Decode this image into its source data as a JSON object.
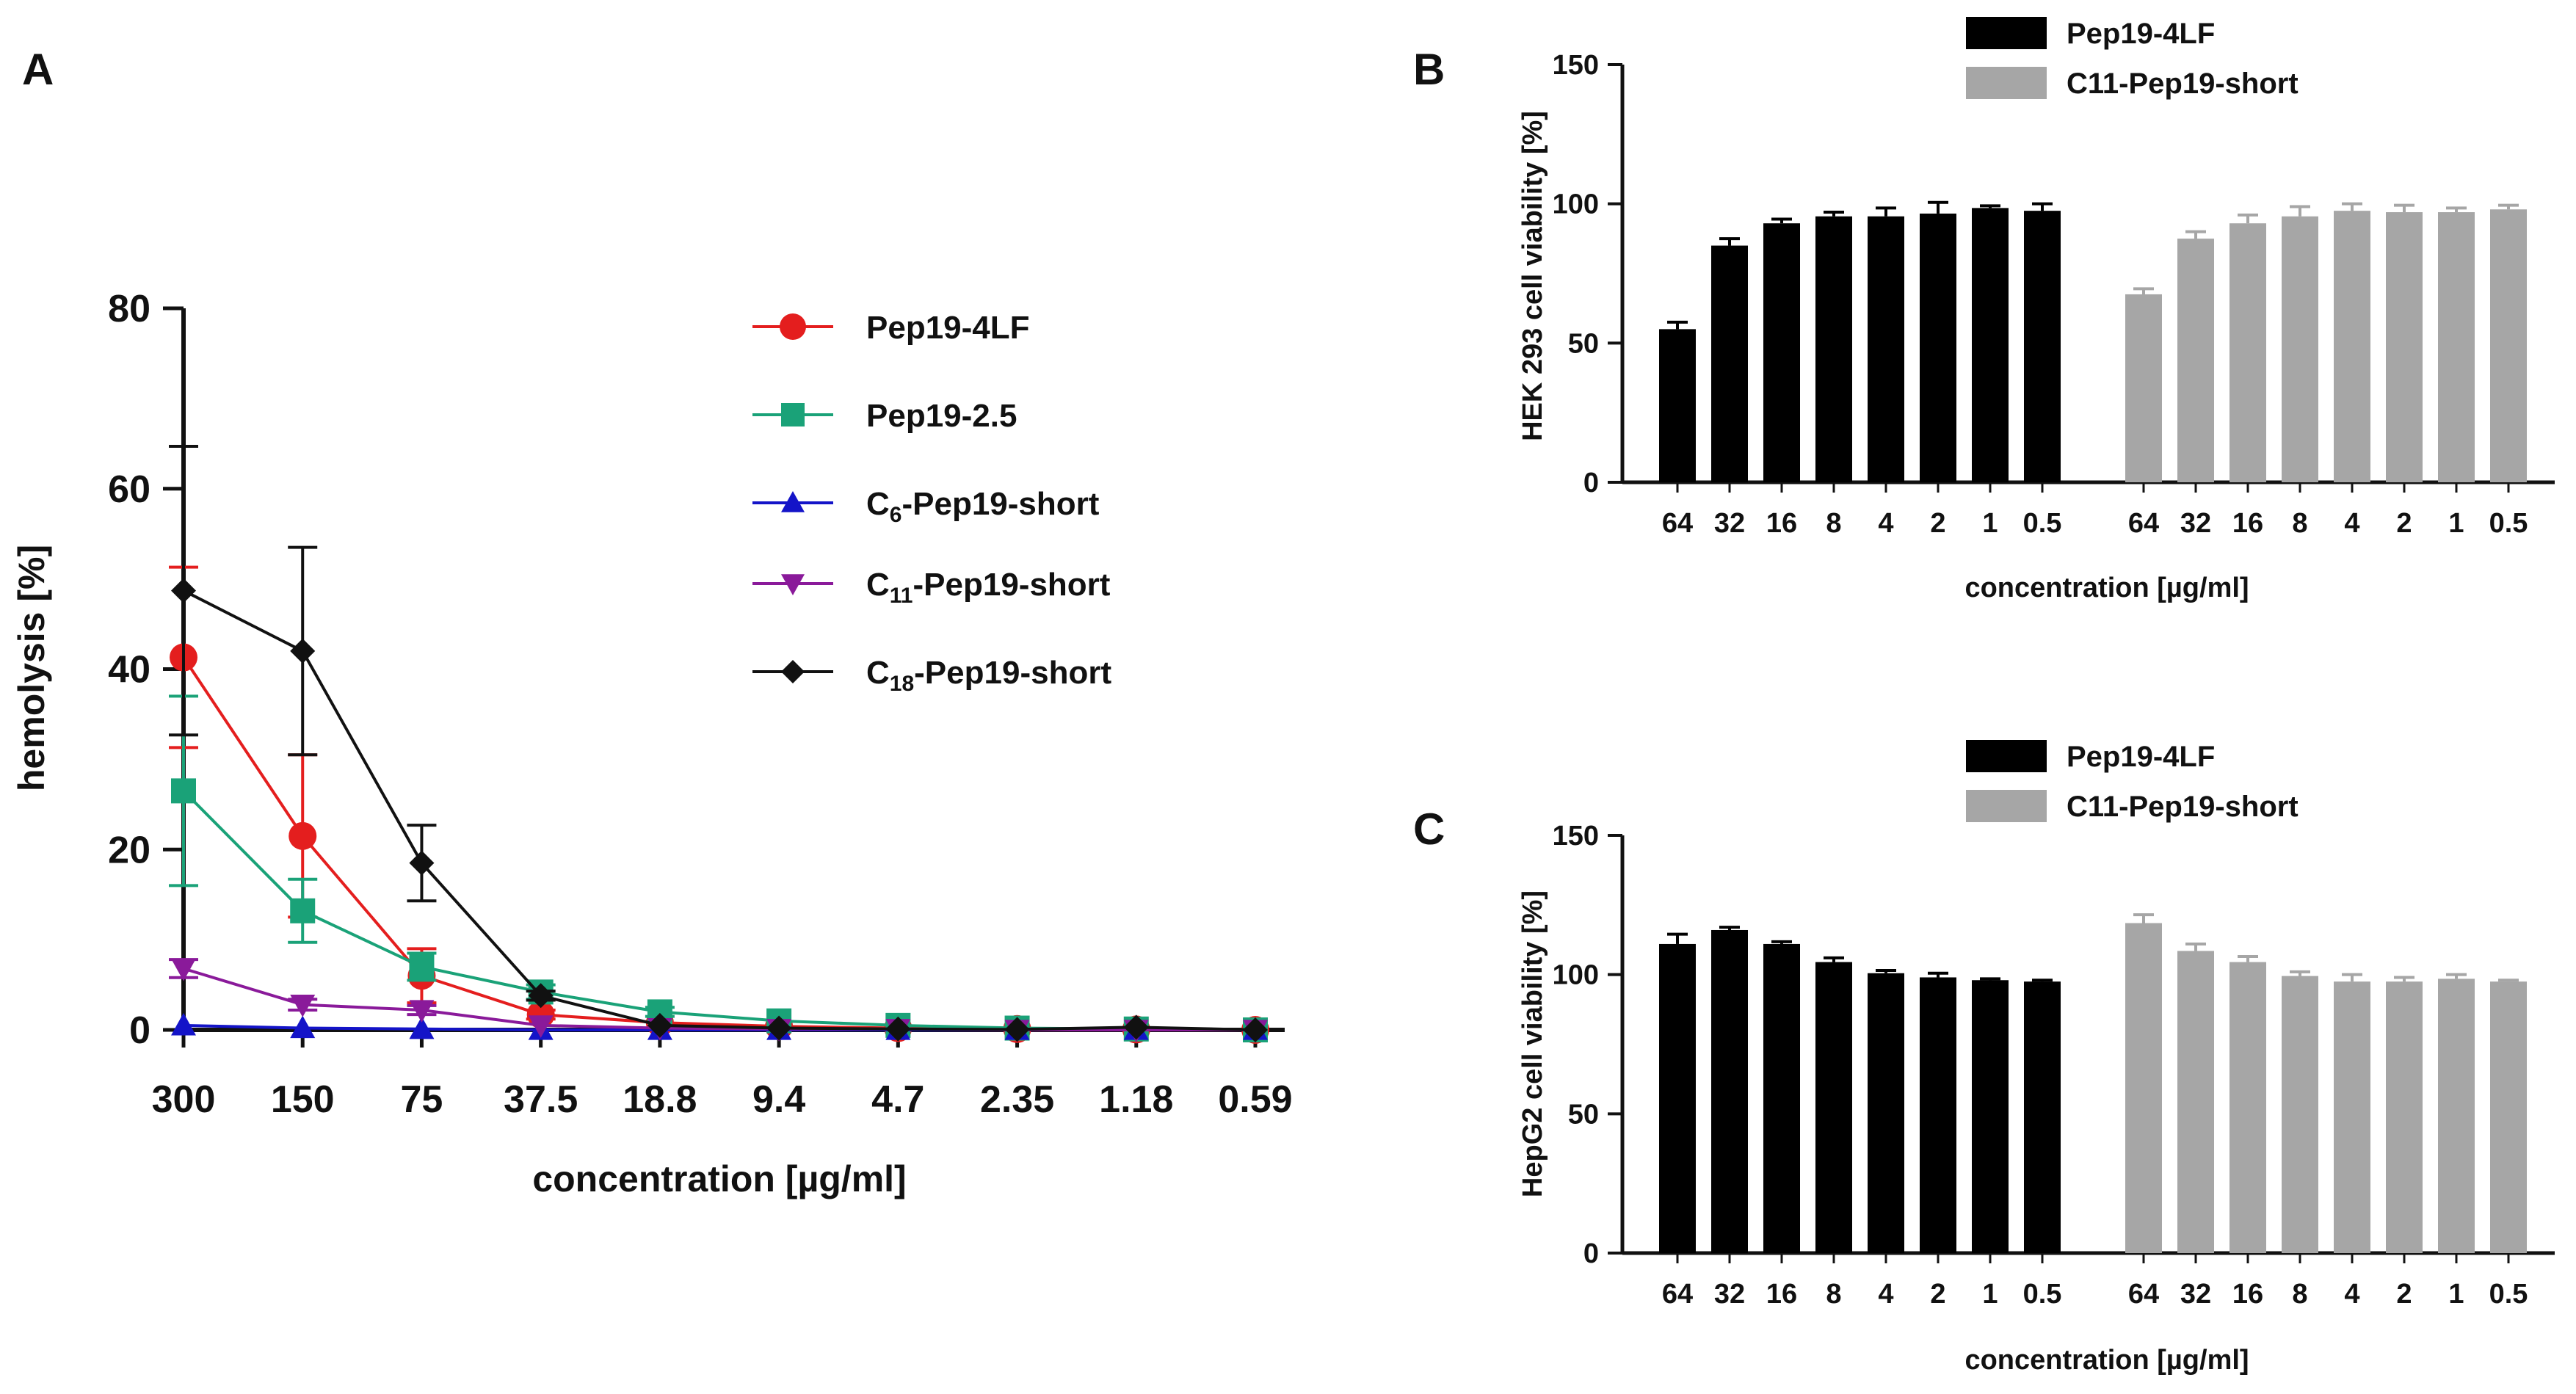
{
  "chart_data": [
    {
      "panel": "A",
      "type": "line",
      "xlabel": "concentration [µg/ml]",
      "ylabel": "hemolysis [%]",
      "categories": [
        "300",
        "150",
        "75",
        "37.5",
        "18.8",
        "9.4",
        "4.7",
        "2.35",
        "1.18",
        "0.59"
      ],
      "ylim": [
        0,
        80
      ],
      "yticks": [
        "0",
        "20",
        "40",
        "60",
        "80"
      ],
      "series": [
        {
          "name": "Pep19-4LF",
          "base": "Pep19-4LF",
          "sub": "",
          "suffix": "",
          "color": "#e41e1e",
          "marker": "circle",
          "values": [
            41.3,
            21.5,
            6.0,
            1.7,
            0.8,
            0.4,
            0.2,
            0.1,
            0.05,
            0.0
          ],
          "errors": [
            10.0,
            9.0,
            3.0,
            0.5,
            0.3,
            0.2,
            0.1,
            0.1,
            0.0,
            0.0
          ]
        },
        {
          "name": "Pep19-2.5",
          "base": "Pep19-2.5",
          "sub": "",
          "suffix": "",
          "color": "#1aa278",
          "marker": "square",
          "values": [
            26.5,
            13.2,
            7.0,
            4.2,
            2.0,
            1.0,
            0.5,
            0.2,
            0.1,
            0.0
          ],
          "errors": [
            10.5,
            3.5,
            1.5,
            0.8,
            0.5,
            0.3,
            0.2,
            0.1,
            0.1,
            0.0
          ]
        },
        {
          "name": "C6-Pep19-short",
          "base": "C",
          "sub": "6",
          "suffix": "-Pep19-short",
          "color": "#1414c8",
          "marker": "triangle-up",
          "values": [
            0.5,
            0.2,
            0.1,
            0.0,
            0.0,
            0.0,
            0.0,
            0.0,
            0.0,
            0.0
          ],
          "errors": [
            0.3,
            0.2,
            0.1,
            0.0,
            0.0,
            0.0,
            0.0,
            0.0,
            0.0,
            0.0
          ]
        },
        {
          "name": "C11-Pep19-short",
          "base": "C",
          "sub": "11",
          "suffix": "-Pep19-short",
          "color": "#8a1a9a",
          "marker": "triangle-down",
          "values": [
            6.8,
            2.8,
            2.2,
            0.5,
            0.2,
            0.1,
            0.1,
            0.0,
            0.0,
            0.0
          ],
          "errors": [
            1.0,
            0.6,
            0.5,
            0.2,
            0.1,
            0.0,
            0.0,
            0.0,
            0.0,
            0.0
          ]
        },
        {
          "name": "C18-Pep19-short",
          "base": "C",
          "sub": "18",
          "suffix": "-Pep19-short",
          "color": "#111111",
          "marker": "diamond",
          "values": [
            48.7,
            42.0,
            18.5,
            3.8,
            0.5,
            0.2,
            0.1,
            0.05,
            0.3,
            0.0
          ],
          "errors": [
            16.0,
            11.5,
            4.2,
            0.5,
            0.2,
            0.1,
            0.1,
            0.0,
            0.1,
            0.0
          ]
        }
      ]
    },
    {
      "panel": "B",
      "type": "bar",
      "xlabel": "concentration [µg/ml]",
      "ylabel": "HEK 293 cell viability  [%]",
      "categories": [
        "64",
        "32",
        "16",
        "8",
        "4",
        "2",
        "1",
        "0.5"
      ],
      "ylim": [
        0,
        150
      ],
      "yticks": [
        "0",
        "50",
        "100",
        "150"
      ],
      "series": [
        {
          "name": "Pep19-4LF",
          "color": "#000000",
          "values": [
            55,
            85,
            93,
            95.5,
            95.5,
            96.5,
            98.5,
            97.5
          ],
          "errors": [
            2.5,
            2.5,
            1.5,
            1.5,
            3.0,
            4.0,
            0.8,
            2.5
          ]
        },
        {
          "name": "C11-Pep19-short",
          "color": "#a6a6a6",
          "values": [
            67.5,
            87.5,
            93,
            95.5,
            97.5,
            97,
            97,
            98
          ],
          "errors": [
            2.0,
            2.5,
            3.0,
            3.5,
            2.5,
            2.5,
            1.5,
            1.5
          ]
        }
      ]
    },
    {
      "panel": "C",
      "type": "bar",
      "xlabel": "concentration [µg/ml]",
      "ylabel": "HepG2 cell viability  [%]",
      "categories": [
        "64",
        "32",
        "16",
        "8",
        "4",
        "2",
        "1",
        "0.5"
      ],
      "ylim": [
        0,
        150
      ],
      "yticks": [
        "0",
        "50",
        "100",
        "150"
      ],
      "series": [
        {
          "name": "Pep19-4LF",
          "color": "#000000",
          "values": [
            111,
            116,
            111,
            104.5,
            100.5,
            99,
            98,
            97.5
          ],
          "errors": [
            3.5,
            1.0,
            0.8,
            1.5,
            1.0,
            1.5,
            0.5,
            0.5
          ]
        },
        {
          "name": "C11-Pep19-short",
          "color": "#a6a6a6",
          "values": [
            118.5,
            108.5,
            104.5,
            99.5,
            97.5,
            97.5,
            98.5,
            97.5
          ],
          "errors": [
            3.0,
            2.5,
            2.0,
            1.5,
            2.5,
            1.5,
            1.5,
            0.5
          ]
        }
      ]
    }
  ]
}
